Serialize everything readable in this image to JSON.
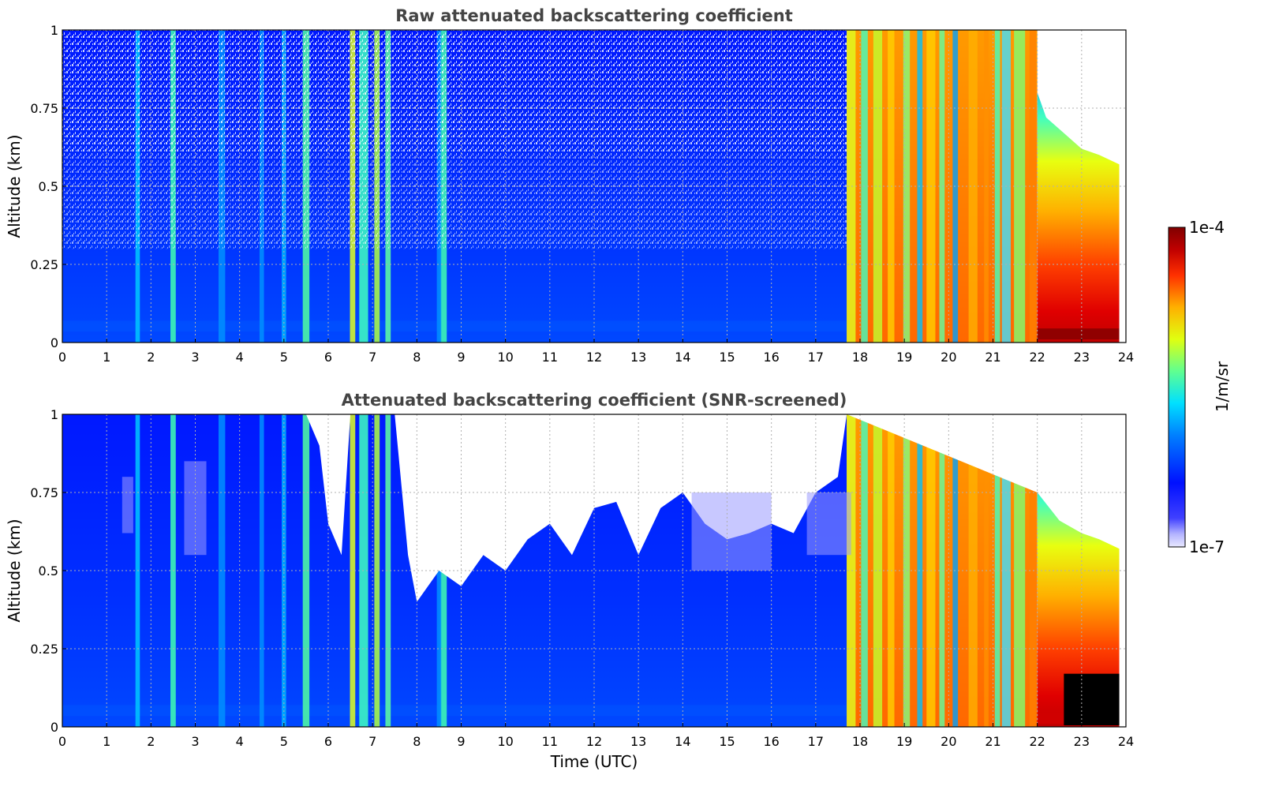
{
  "chart_data": [
    {
      "type": "heatmap",
      "title": "Raw attenuated backscattering coefficient",
      "xlabel": "",
      "ylabel": "Altitude (km)",
      "xlim": [
        0,
        24
      ],
      "ylim": [
        0,
        1
      ],
      "xticks": [
        "0",
        "1",
        "2",
        "3",
        "4",
        "5",
        "6",
        "7",
        "8",
        "9",
        "10",
        "11",
        "12",
        "13",
        "14",
        "15",
        "16",
        "17",
        "18",
        "19",
        "20",
        "21",
        "22",
        "23",
        "24"
      ],
      "yticks": [
        "0",
        "0.25",
        "0.5",
        "0.75",
        "1"
      ],
      "grid": true,
      "data_end_hour": 23.85,
      "regime_notes": "Blue (~1e-6.3 to 1e-6) background with noisy white gaps above ~0.3 km from 0-17.7 UTC; cyan/green streaks near 1.7, 2.5, 5.5, 6.5-7.5, 8.6 UTC; yellow/orange 17.7-22 UTC; red-dark red low levels after 22 UTC with top descending to ~0.55 km.",
      "profile_top_km": {
        "x": [
          22.0,
          22.2,
          22.6,
          23.0,
          23.4,
          23.85
        ],
        "y": [
          0.8,
          0.72,
          0.67,
          0.62,
          0.6,
          0.57
        ]
      }
    },
    {
      "type": "heatmap",
      "title": "Attenuated backscattering coefficient (SNR-screened)",
      "xlabel": "Time (UTC)",
      "ylabel": "Altitude (km)",
      "xlim": [
        0,
        24
      ],
      "ylim": [
        0,
        1
      ],
      "xticks": [
        "0",
        "1",
        "2",
        "3",
        "4",
        "5",
        "6",
        "7",
        "8",
        "9",
        "10",
        "11",
        "12",
        "13",
        "14",
        "15",
        "16",
        "17",
        "18",
        "19",
        "20",
        "21",
        "22",
        "23",
        "24"
      ],
      "yticks": [
        "0",
        "0.25",
        "0.5",
        "0.75",
        "1"
      ],
      "grid": true,
      "data_end_hour": 23.85,
      "screened_top_km": {
        "x": [
          0,
          0.5,
          1,
          1.5,
          2,
          2.5,
          3,
          3.5,
          4,
          4.5,
          5,
          5.5,
          5.8,
          6.0,
          6.3,
          6.5,
          7.5,
          7.8,
          8,
          8.5,
          9,
          9.5,
          10,
          10.5,
          11,
          11.5,
          12,
          12.5,
          13,
          13.5,
          14,
          14.5,
          15,
          15.5,
          16,
          16.5,
          17,
          17.5,
          17.7,
          22,
          22.5,
          23,
          23.5,
          23.85
        ],
        "y": [
          1,
          1,
          1,
          1,
          1,
          1,
          1,
          1,
          1,
          1,
          1,
          1,
          0.9,
          0.65,
          0.55,
          1,
          1,
          0.55,
          0.4,
          0.5,
          0.45,
          0.55,
          0.5,
          0.6,
          0.65,
          0.55,
          0.7,
          0.72,
          0.55,
          0.7,
          0.75,
          0.65,
          0.6,
          0.62,
          0.65,
          0.62,
          0.75,
          0.8,
          1,
          0.75,
          0.66,
          0.62,
          0.6,
          0.57
        ]
      },
      "black_saturation": {
        "x_range": [
          22.6,
          23.85
        ],
        "top_km": 0.17
      }
    }
  ],
  "colorbar": {
    "min_label": "1e-7",
    "max_label": "1e-4",
    "label": "1/m/sr",
    "colormap": "jet",
    "scale": "log"
  }
}
